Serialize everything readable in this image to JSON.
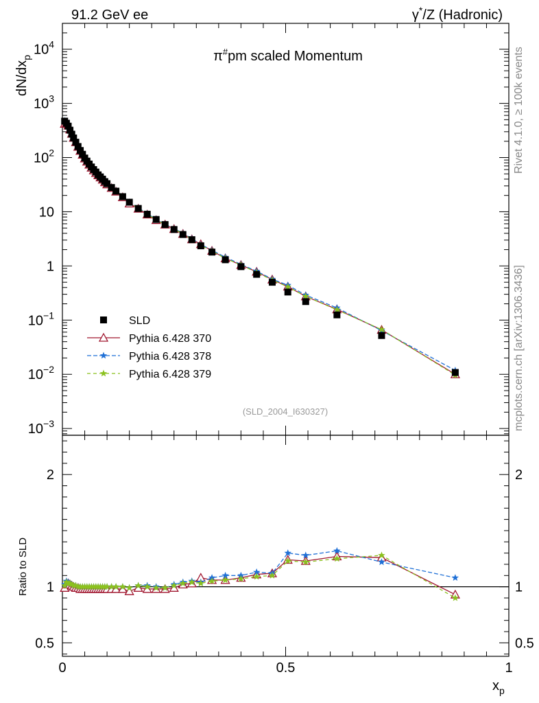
{
  "header": {
    "left": "91.2 GeV ee",
    "right_gamma": "γ",
    "right_star": "*",
    "right_rest": "/Z (Hadronic)"
  },
  "side": {
    "rivet": "Rivet 4.1.0, ≥ 100k events",
    "mcplots": "mcplots.cern.ch [arXiv:1306.3436]"
  },
  "chart_data": {
    "type": "scatter",
    "title": "π#pm scaled Momentum",
    "title_parts": {
      "pi": "π",
      "sup": "#",
      "rest": "pm scaled Momentum"
    },
    "analysis_tag": "(SLD_2004_I630327)",
    "xlabel": "x",
    "xlabel_sub": "p",
    "ylabel": "dN/dx",
    "ylabel_sub": "p",
    "ratio_ylabel": "Ratio to SLD",
    "xlim": [
      0,
      1
    ],
    "ylim": [
      0.00075,
      30000
    ],
    "ratio_ylim": [
      0.38,
      2.35
    ],
    "main_yticks": [
      {
        "v": 10000,
        "base": "10",
        "exp": "4"
      },
      {
        "v": 1000,
        "base": "10",
        "exp": "3"
      },
      {
        "v": 100,
        "base": "10",
        "exp": "2"
      },
      {
        "v": 10,
        "base": "10",
        "exp": ""
      },
      {
        "v": 1,
        "base": "1",
        "exp": ""
      },
      {
        "v": 0.1,
        "base": "10",
        "exp": "−1"
      },
      {
        "v": 0.01,
        "base": "10",
        "exp": "−2"
      },
      {
        "v": 0.001,
        "base": "10",
        "exp": "−3"
      }
    ],
    "ratio_yticks": [
      {
        "v": 2,
        "label": "2"
      },
      {
        "v": 1,
        "label": "1"
      },
      {
        "v": 0.5,
        "label": "0.5"
      }
    ],
    "xticks": [
      {
        "v": 0,
        "label": "0"
      },
      {
        "v": 0.5,
        "label": "0.5"
      },
      {
        "v": 1,
        "label": "1"
      }
    ],
    "x": [
      0.005,
      0.009,
      0.013,
      0.017,
      0.021,
      0.025,
      0.03,
      0.035,
      0.04,
      0.045,
      0.05,
      0.055,
      0.06,
      0.065,
      0.07,
      0.075,
      0.08,
      0.085,
      0.09,
      0.095,
      0.1,
      0.11,
      0.12,
      0.135,
      0.15,
      0.17,
      0.19,
      0.21,
      0.23,
      0.25,
      0.27,
      0.29,
      0.31,
      0.335,
      0.365,
      0.4,
      0.435,
      0.47,
      0.505,
      0.545,
      0.615,
      0.715,
      0.88
    ],
    "series": [
      {
        "name": "SLD",
        "legend": "SLD",
        "color": "#000000",
        "marker": "square",
        "values": [
          470,
          430,
          380,
          320,
          270,
          230,
          192,
          160,
          135,
          115,
          98,
          86,
          76,
          67,
          60,
          54,
          48,
          44,
          40,
          36,
          33,
          28,
          24,
          19,
          15,
          11.5,
          9.0,
          7.2,
          5.8,
          4.7,
          3.8,
          3.05,
          2.35,
          1.8,
          1.3,
          0.97,
          0.7,
          0.5,
          0.33,
          0.22,
          0.125,
          0.052,
          0.0108
        ],
        "ratio": [
          1,
          1,
          1,
          1,
          1,
          1,
          1,
          1,
          1,
          1,
          1,
          1,
          1,
          1,
          1,
          1,
          1,
          1,
          1,
          1,
          1,
          1,
          1,
          1,
          1,
          1,
          1,
          1,
          1,
          1,
          1,
          1,
          1,
          1,
          1,
          1,
          1,
          1,
          1,
          1,
          1,
          1,
          1
        ]
      },
      {
        "name": "Pythia 6.428 370",
        "legend": "Pythia 6.428 370",
        "color": "#a0162f",
        "marker": "triangle-open",
        "dash": "",
        "values": [
          420,
          430,
          390,
          330,
          275,
          232,
          192,
          158,
          133,
          113,
          96,
          84,
          74,
          65,
          58,
          52,
          47,
          43,
          39,
          35,
          32,
          27.5,
          23.5,
          18.5,
          14.2,
          11.4,
          8.9,
          7.0,
          5.8,
          4.8,
          3.9,
          3.1,
          2.52,
          1.9,
          1.38,
          1.04,
          0.78,
          0.56,
          0.415,
          0.274,
          0.158,
          0.066,
          0.01
        ],
        "ratio": [
          0.99,
          1.02,
          1.03,
          1.02,
          1.01,
          1.0,
          0.99,
          0.99,
          0.98,
          0.98,
          0.98,
          0.98,
          0.98,
          0.98,
          0.98,
          0.98,
          0.98,
          0.98,
          0.98,
          0.98,
          0.98,
          0.98,
          0.98,
          0.98,
          0.96,
          0.99,
          0.98,
          0.98,
          0.98,
          0.99,
          1.02,
          1.03,
          1.08,
          1.06,
          1.06,
          1.08,
          1.11,
          1.12,
          1.24,
          1.23,
          1.27,
          1.26,
          0.93
        ]
      },
      {
        "name": "Pythia 6.428 378",
        "legend": "Pythia 6.428 378",
        "color": "#1e6fd6",
        "marker": "star",
        "dash": "6,3",
        "values": [
          480,
          450,
          395,
          335,
          278,
          235,
          195,
          162,
          136,
          116,
          99,
          87,
          77,
          68,
          61,
          55,
          49,
          45,
          41,
          37,
          33.5,
          28.5,
          24.3,
          19.2,
          15.0,
          11.8,
          9.2,
          7.3,
          5.9,
          4.9,
          4.0,
          3.2,
          2.5,
          1.95,
          1.45,
          1.07,
          0.8,
          0.57,
          0.44,
          0.29,
          0.168,
          0.064,
          0.0118
        ],
        "ratio": [
          1.02,
          1.05,
          1.04,
          1.03,
          1.02,
          1.01,
          1.01,
          1.0,
          1.0,
          1.0,
          1.0,
          1.0,
          1.0,
          1.0,
          1.0,
          1.0,
          1.0,
          1.0,
          1.0,
          1.0,
          1.0,
          1.0,
          1.0,
          1.0,
          0.99,
          1.01,
          1.01,
          1.0,
          0.99,
          1.02,
          1.04,
          1.05,
          1.04,
          1.08,
          1.1,
          1.1,
          1.13,
          1.12,
          1.3,
          1.28,
          1.32,
          1.22,
          1.08
        ]
      },
      {
        "name": "Pythia 6.428 379",
        "legend": "Pythia 6.428 379",
        "color": "#8bc11f",
        "marker": "star",
        "dash": "5,4",
        "values": [
          470,
          445,
          392,
          330,
          276,
          233,
          194,
          160,
          135,
          115,
          98,
          86,
          76,
          67,
          60,
          54,
          48.5,
          44,
          40,
          36,
          33,
          28,
          24,
          19,
          14.8,
          11.6,
          9.0,
          7.1,
          5.8,
          4.8,
          3.9,
          3.1,
          2.42,
          1.88,
          1.38,
          1.04,
          0.76,
          0.55,
          0.41,
          0.274,
          0.155,
          0.067,
          0.0097
        ],
        "ratio": [
          1.01,
          1.04,
          1.03,
          1.03,
          1.02,
          1.01,
          1.01,
          1.0,
          1.0,
          1.0,
          1.0,
          1.0,
          1.0,
          1.0,
          1.0,
          1.0,
          1.0,
          1.0,
          1.0,
          1.0,
          1.0,
          1.0,
          1.0,
          1.0,
          0.99,
          1.01,
          1.0,
          0.99,
          0.99,
          1.01,
          1.03,
          1.04,
          1.03,
          1.05,
          1.06,
          1.07,
          1.09,
          1.1,
          1.23,
          1.22,
          1.25,
          1.28,
          0.9
        ]
      }
    ]
  }
}
